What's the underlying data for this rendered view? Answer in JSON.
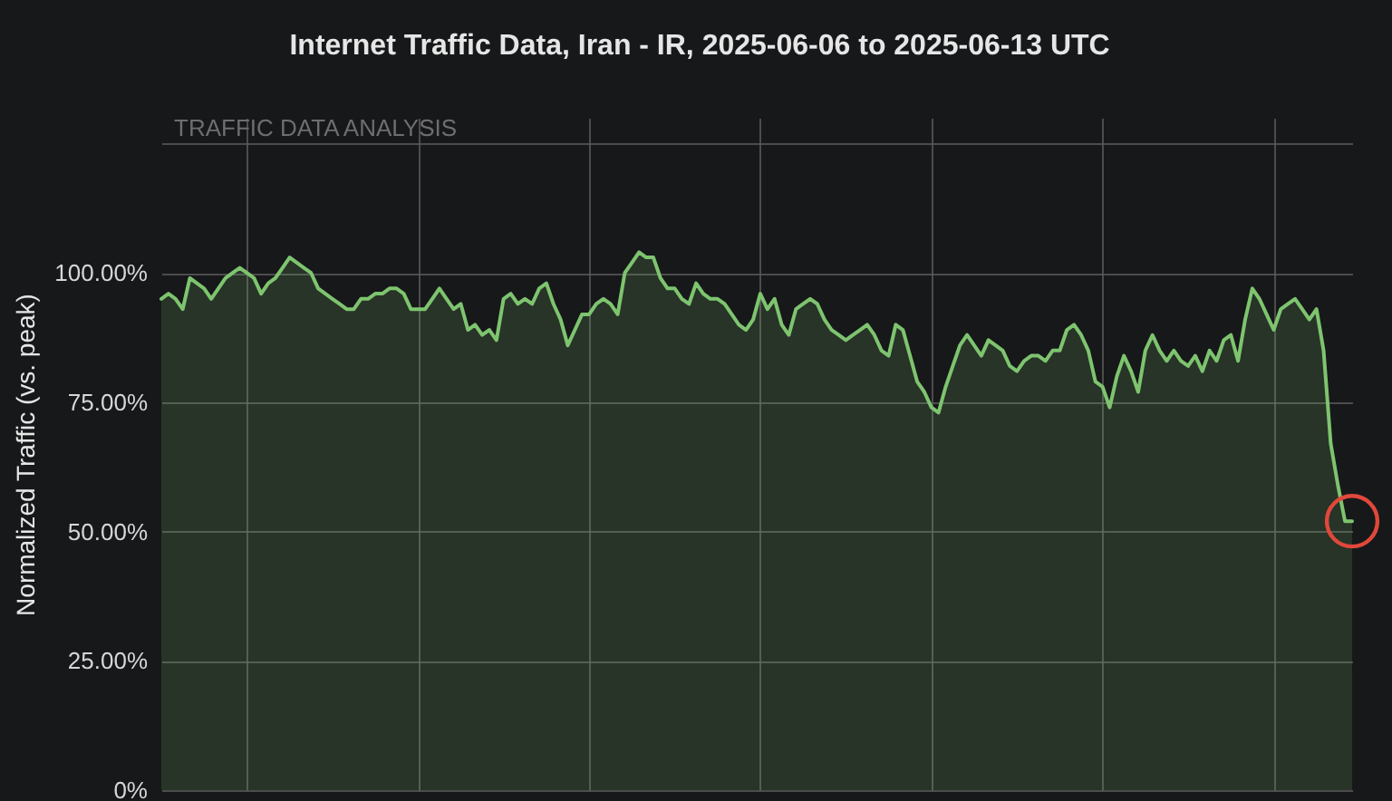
{
  "chart_data": {
    "type": "area",
    "title": "Internet Traffic Data, Iran - IR, 2025-06-06 to 2025-06-13 UTC",
    "subtitle": "TRAFFIC DATA ANALYSIS",
    "ylabel": "Normalized Traffic (vs. peak)",
    "categories": [
      null,
      null,
      null,
      null,
      null,
      null,
      null,
      null,
      null,
      null,
      null,
      null,
      null,
      null,
      null,
      null,
      null,
      null,
      null,
      null,
      null,
      null,
      null,
      null,
      null,
      null,
      null,
      null,
      null,
      null,
      null,
      null,
      null,
      null,
      null,
      null,
      null,
      null,
      null,
      null,
      null,
      null,
      null,
      null,
      null,
      null,
      null,
      null,
      null,
      null,
      null,
      null,
      null,
      null,
      null,
      null,
      null,
      null,
      null,
      null,
      null,
      null,
      null,
      null,
      null,
      null,
      null,
      null,
      null,
      null,
      null,
      null,
      null,
      null,
      null,
      null,
      null,
      null,
      null,
      null,
      null,
      null,
      null,
      null,
      null,
      null,
      null,
      null,
      null,
      null,
      null,
      null,
      null,
      null,
      null,
      null,
      null,
      null,
      null,
      null,
      null,
      null,
      null,
      null,
      null,
      null,
      null,
      null,
      null,
      null,
      null,
      null,
      null,
      null,
      null,
      null,
      null,
      null,
      null,
      null,
      null,
      null,
      null,
      null,
      null,
      null,
      null,
      null,
      null,
      null,
      null,
      null,
      null,
      null,
      null,
      null,
      null,
      null,
      null,
      null,
      null,
      null,
      null,
      null,
      null,
      null,
      null,
      null,
      null,
      null,
      null,
      null,
      null,
      null,
      null,
      null,
      null,
      null,
      null,
      null,
      null,
      null,
      null,
      null,
      null,
      null,
      null,
      null
    ],
    "series": [
      {
        "color": "#7ec46f",
        "values": [
          95,
          96,
          95,
          93,
          99,
          98,
          97,
          95,
          97,
          99,
          100,
          101,
          100,
          99,
          96,
          98,
          99,
          101,
          103,
          102,
          101,
          100,
          97,
          96,
          95,
          94,
          93,
          93,
          95,
          95,
          96,
          96,
          97,
          97,
          96,
          93,
          93,
          93,
          95,
          97,
          95,
          93,
          94,
          89,
          90,
          88,
          89,
          87,
          95,
          96,
          94,
          95,
          94,
          97,
          98,
          94,
          91,
          86,
          89,
          92,
          92,
          94,
          95,
          94,
          92,
          100,
          102,
          104,
          103,
          103,
          99,
          97,
          97,
          95,
          94,
          98,
          96,
          95,
          95,
          94,
          92,
          90,
          89,
          91,
          96,
          93,
          95,
          90,
          88,
          93,
          94,
          95,
          94,
          91,
          89,
          88,
          87,
          88,
          89,
          90,
          88,
          85,
          84,
          90,
          89,
          84,
          79,
          77,
          74,
          73,
          78,
          82,
          86,
          88,
          86,
          84,
          87,
          86,
          85,
          82,
          81,
          83,
          84,
          84,
          83,
          85,
          85,
          89,
          90,
          88,
          85,
          79,
          78,
          74,
          80,
          84,
          81,
          77,
          85,
          88,
          85,
          83,
          85,
          83,
          82,
          84,
          81,
          85,
          83,
          87,
          88,
          83,
          91,
          97,
          95,
          92,
          89,
          93,
          94,
          95,
          93,
          91,
          93,
          85,
          67,
          59,
          52,
          52
        ]
      }
    ],
    "ylim": [
      0,
      130
    ],
    "yticks": [
      {
        "value": 0,
        "label": "0%"
      },
      {
        "value": 25,
        "label": "25.00%"
      },
      {
        "value": 50,
        "label": "50.00%"
      },
      {
        "value": 75,
        "label": "75.00%"
      },
      {
        "value": 100,
        "label": "100.00%"
      },
      {
        "value": 125,
        "label": null
      }
    ],
    "grid": true,
    "tick_labels": "y"
  }
}
